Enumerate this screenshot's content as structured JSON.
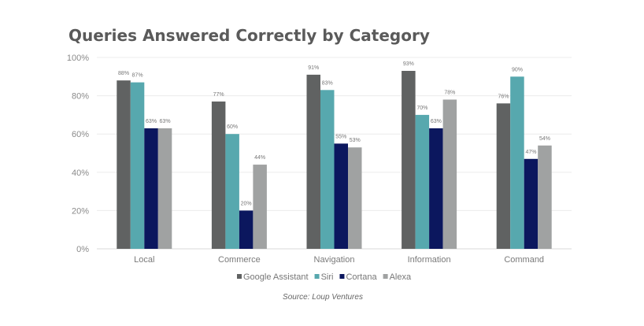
{
  "chart_data": {
    "type": "bar",
    "title": "Queries Answered Correctly by Category",
    "categories": [
      "Local",
      "Commerce",
      "Navigation",
      "Information",
      "Command"
    ],
    "series": [
      {
        "name": "Google Assistant",
        "color": "#606262",
        "values": [
          88,
          77,
          91,
          93,
          76
        ]
      },
      {
        "name": "Siri",
        "color": "#57a8ae",
        "values": [
          87,
          60,
          83,
          70,
          90
        ]
      },
      {
        "name": "Cortana",
        "color": "#0b175e",
        "values": [
          63,
          20,
          55,
          63,
          47
        ]
      },
      {
        "name": "Alexa",
        "color": "#a0a2a2",
        "values": [
          63,
          44,
          53,
          78,
          54
        ]
      }
    ],
    "yticks": [
      "0%",
      "20%",
      "40%",
      "60%",
      "80%",
      "100%"
    ],
    "ylim": [
      0,
      100
    ],
    "xlabel": "",
    "ylabel": "",
    "grid": true,
    "legend": "bottom",
    "source": "Source: Loup Ventures"
  }
}
